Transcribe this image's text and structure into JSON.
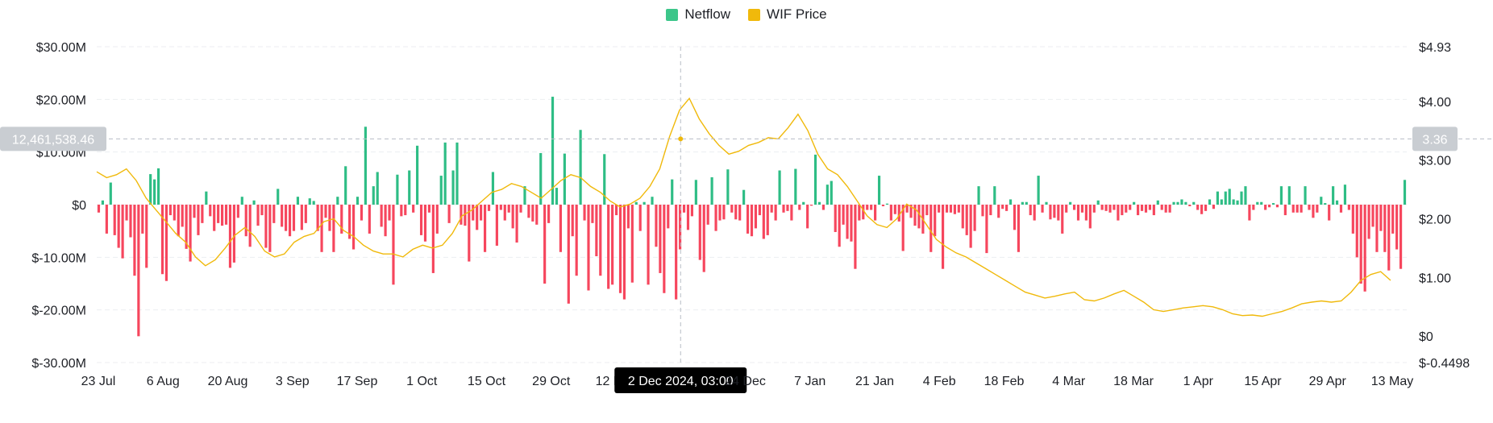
{
  "chart_data": {
    "type": "bar+line",
    "legend": [
      {
        "name": "Netflow",
        "color": "#3cc68a"
      },
      {
        "name": "WIF Price",
        "color": "#f0b90b"
      }
    ],
    "legend_placement": "top-center",
    "x_ticks": [
      "23 Jul",
      "6 Aug",
      "20 Aug",
      "3 Sep",
      "17 Sep",
      "1 Oct",
      "15 Oct",
      "29 Oct",
      "12 Nov",
      "2 Dec 2024, 03:00",
      "24 Dec",
      "7 Jan",
      "21 Jan",
      "4 Feb",
      "18 Feb",
      "4 Mar",
      "18 Mar",
      "1 Apr",
      "15 Apr",
      "29 Apr",
      "13 May"
    ],
    "y_left": {
      "ticks": [
        "$30.00M",
        "$20.00M",
        "$10.00M",
        "$0",
        "$-10.00M",
        "$-20.00M",
        "$-30.00M"
      ],
      "range_millions": [
        -30,
        30
      ]
    },
    "y_right": {
      "ticks": [
        "$4.93",
        "$4.00",
        "$3.00",
        "$2.00",
        "$1.00",
        "$0",
        "$-0.4498"
      ],
      "range": [
        -0.4498,
        4.93
      ]
    },
    "grid": true,
    "crosshair": {
      "date": "2 Dec 2024, 03:00",
      "left_value": "12,461,538.46",
      "right_value": "3.36"
    },
    "series": [
      {
        "name": "Netflow",
        "unit": "$M",
        "values": [
          -1.5,
          0.8,
          -5.5,
          4.2,
          -5.8,
          -8.2,
          -10.2,
          -3.0,
          -6.2,
          -13.5,
          -25.0,
          -5.5,
          -12.0,
          5.8,
          4.8,
          6.9,
          -13.2,
          -14.5,
          -2.0,
          -3.0,
          -6.0,
          -4.2,
          -8.4,
          -10.8,
          -2.5,
          -5.8,
          -3.5,
          2.5,
          -2.2,
          -5.0,
          -3.5,
          -4.0,
          -3.8,
          -12.0,
          -11.0,
          -2.5,
          1.5,
          -6.0,
          -8.0,
          0.8,
          -4.0,
          -2.0,
          -8.2,
          -9.0,
          -3.5,
          3.0,
          -4.2,
          -5.0,
          -6.0,
          -5.0,
          1.5,
          -4.8,
          -3.5,
          1.2,
          0.7,
          -5.0,
          -9.0,
          -2.5,
          -5.0,
          -9.0,
          1.5,
          -5.5,
          7.3,
          -6.5,
          -8.5,
          1.5,
          -3.0,
          14.8,
          -5.5,
          3.5,
          6.2,
          -4.2,
          -6.0,
          -3.0,
          -15.2,
          5.7,
          -2.2,
          -2.0,
          6.5,
          -1.5,
          11.2,
          -5.8,
          -7.0,
          -1.5,
          -13.0,
          -5.5,
          5.5,
          11.8,
          -3.5,
          6.5,
          11.8,
          -3.8,
          -4.0,
          -10.8,
          -3.0,
          -4.8,
          -3.0,
          -9.0,
          -1.2,
          6.2,
          -7.8,
          -1.0,
          -3.0,
          -1.5,
          -4.5,
          -7.2,
          -1.5,
          3.5,
          -2.5,
          -3.2,
          -3.8,
          9.8,
          -15.0,
          -3.5,
          20.5,
          3.2,
          -9.0,
          9.7,
          -18.8,
          -6.0,
          -13.5,
          14.2,
          -3.0,
          -16.3,
          -3.5,
          -9.8,
          -13.5,
          9.6,
          -16.0,
          -15.2,
          -2.0,
          -16.8,
          -18.0,
          -4.5,
          -14.8,
          0.5,
          -5.0,
          0.5,
          -15.2,
          1.5,
          -8.0,
          -13.0,
          -16.8,
          -4.5,
          4.8,
          -18.0,
          -8.5,
          -1.5,
          -4.8,
          -2.2,
          4.7,
          -10.5,
          -12.8,
          -3.8,
          5.2,
          -5.0,
          -3.0,
          -2.8,
          6.7,
          -1.5,
          -2.8,
          -3.0,
          2.8,
          -5.5,
          -6.0,
          -4.5,
          -2.0,
          -6.5,
          -5.8,
          -1.5,
          -3.0,
          6.5,
          -1.5,
          -1.2,
          -3.0,
          6.8,
          -1.0,
          0.5,
          -4.5,
          -0.2,
          9.5,
          0.5,
          -1.0,
          3.8,
          4.5,
          -5.2,
          -8.0,
          -3.8,
          -6.5,
          -7.0,
          -12.2,
          -3.0,
          -2.8,
          -1.0,
          -1.0,
          -3.0,
          5.5,
          -0.3,
          0.2,
          -3.0,
          -1.8,
          -3.2,
          -8.8,
          -1.5,
          -2.5,
          -4.0,
          -4.5,
          -5.5,
          -2.0,
          -9.0,
          -6.0,
          -1.5,
          -12.2,
          -1.5,
          -1.5,
          -1.8,
          -1.5,
          -4.5,
          -5.8,
          -8.2,
          -5.0,
          3.5,
          -2.2,
          -9.2,
          -2.0,
          3.5,
          -2.5,
          -0.8,
          -1.2,
          1.0,
          -4.8,
          -9.0,
          0.5,
          0.5,
          -2.0,
          -3.0,
          5.5,
          -1.5,
          0.5,
          -2.8,
          -2.5,
          -3.0,
          -5.5,
          -1.5,
          0.5,
          -1.0,
          -3.0,
          -1.5,
          -3.0,
          -4.5,
          -1.5,
          0.8,
          -1.0,
          -1.2,
          -1.5,
          -1.0,
          -3.0,
          -2.0,
          -1.5,
          -1.0,
          0.5,
          -2.0,
          -1.2,
          -1.5,
          -1.0,
          -2.0,
          0.8,
          -1.0,
          -1.5,
          -1.5,
          0.5,
          0.5,
          1.0,
          0.5,
          -0.3,
          0.5,
          -1.0,
          -1.8,
          -1.2,
          1.0,
          -0.8,
          2.5,
          1.0,
          2.5,
          3.0,
          1.0,
          0.8,
          2.5,
          3.5,
          -3.0,
          -1.0,
          0.5,
          0.5,
          -1.0,
          -0.5,
          0.3,
          -0.5,
          3.5,
          -2.0,
          3.5,
          -1.5,
          -1.5,
          -1.5,
          3.5,
          -1.0,
          -2.5,
          -1.5,
          1.5,
          0.3,
          -3.0,
          3.5,
          0.8,
          -1.5,
          3.8,
          -1.0,
          -5.5,
          -10.0,
          -15.0,
          -16.5,
          -6.5,
          -4.2,
          -9.0,
          -5.0,
          -9.0,
          -12.5,
          -5.5,
          -8.5,
          -12.2,
          4.7
        ]
      },
      {
        "name": "WIF Price",
        "unit": "$",
        "points": [
          [
            0,
            2.8
          ],
          [
            1,
            2.7
          ],
          [
            2,
            2.75
          ],
          [
            3,
            2.85
          ],
          [
            4,
            2.65
          ],
          [
            5,
            2.35
          ],
          [
            6,
            2.15
          ],
          [
            7,
            1.95
          ],
          [
            8,
            1.75
          ],
          [
            9,
            1.6
          ],
          [
            10,
            1.35
          ],
          [
            11,
            1.2
          ],
          [
            12,
            1.3
          ],
          [
            13,
            1.5
          ],
          [
            14,
            1.72
          ],
          [
            15,
            1.85
          ],
          [
            16,
            1.7
          ],
          [
            17,
            1.45
          ],
          [
            18,
            1.35
          ],
          [
            19,
            1.4
          ],
          [
            20,
            1.6
          ],
          [
            21,
            1.7
          ],
          [
            22,
            1.75
          ],
          [
            23,
            1.95
          ],
          [
            24,
            2.0
          ],
          [
            25,
            1.8
          ],
          [
            26,
            1.7
          ],
          [
            27,
            1.55
          ],
          [
            28,
            1.45
          ],
          [
            29,
            1.4
          ],
          [
            30,
            1.4
          ],
          [
            31,
            1.35
          ],
          [
            32,
            1.48
          ],
          [
            33,
            1.55
          ],
          [
            34,
            1.5
          ],
          [
            35,
            1.55
          ],
          [
            36,
            1.75
          ],
          [
            37,
            2.05
          ],
          [
            38,
            2.15
          ],
          [
            39,
            2.3
          ],
          [
            40,
            2.45
          ],
          [
            41,
            2.5
          ],
          [
            42,
            2.6
          ],
          [
            43,
            2.55
          ],
          [
            44,
            2.45
          ],
          [
            45,
            2.35
          ],
          [
            46,
            2.5
          ],
          [
            47,
            2.65
          ],
          [
            48,
            2.75
          ],
          [
            49,
            2.7
          ],
          [
            50,
            2.55
          ],
          [
            51,
            2.45
          ],
          [
            52,
            2.3
          ],
          [
            53,
            2.2
          ],
          [
            54,
            2.25
          ],
          [
            55,
            2.35
          ],
          [
            56,
            2.55
          ],
          [
            57,
            2.85
          ],
          [
            58,
            3.4
          ],
          [
            59,
            3.85
          ],
          [
            60,
            4.05
          ],
          [
            61,
            3.7
          ],
          [
            62,
            3.45
          ],
          [
            63,
            3.25
          ],
          [
            64,
            3.1
          ],
          [
            65,
            3.15
          ],
          [
            66,
            3.25
          ],
          [
            67,
            3.3
          ],
          [
            68,
            3.38
          ],
          [
            69,
            3.36
          ],
          [
            70,
            3.55
          ],
          [
            71,
            3.78
          ],
          [
            72,
            3.5
          ],
          [
            73,
            3.1
          ],
          [
            74,
            2.85
          ],
          [
            75,
            2.75
          ],
          [
            76,
            2.55
          ],
          [
            77,
            2.3
          ],
          [
            78,
            2.05
          ],
          [
            79,
            1.9
          ],
          [
            80,
            1.85
          ],
          [
            81,
            2.0
          ],
          [
            82,
            2.25
          ],
          [
            83,
            2.15
          ],
          [
            84,
            1.9
          ],
          [
            85,
            1.65
          ],
          [
            86,
            1.52
          ],
          [
            87,
            1.42
          ],
          [
            88,
            1.35
          ],
          [
            89,
            1.25
          ],
          [
            90,
            1.15
          ],
          [
            91,
            1.05
          ],
          [
            92,
            0.95
          ],
          [
            93,
            0.85
          ],
          [
            94,
            0.75
          ],
          [
            95,
            0.7
          ],
          [
            96,
            0.65
          ],
          [
            97,
            0.68
          ],
          [
            98,
            0.72
          ],
          [
            99,
            0.75
          ],
          [
            100,
            0.62
          ],
          [
            101,
            0.6
          ],
          [
            102,
            0.65
          ],
          [
            103,
            0.72
          ],
          [
            104,
            0.78
          ],
          [
            105,
            0.68
          ],
          [
            106,
            0.58
          ],
          [
            107,
            0.45
          ],
          [
            108,
            0.42
          ],
          [
            109,
            0.45
          ],
          [
            110,
            0.48
          ],
          [
            111,
            0.5
          ],
          [
            112,
            0.52
          ],
          [
            113,
            0.5
          ],
          [
            114,
            0.45
          ],
          [
            115,
            0.38
          ],
          [
            116,
            0.35
          ],
          [
            117,
            0.36
          ],
          [
            118,
            0.34
          ],
          [
            119,
            0.38
          ],
          [
            120,
            0.42
          ],
          [
            121,
            0.48
          ],
          [
            122,
            0.55
          ],
          [
            123,
            0.58
          ],
          [
            124,
            0.6
          ],
          [
            125,
            0.58
          ],
          [
            126,
            0.6
          ],
          [
            127,
            0.75
          ],
          [
            128,
            0.95
          ],
          [
            129,
            1.05
          ],
          [
            130,
            1.1
          ],
          [
            131,
            0.95
          ]
        ]
      }
    ]
  }
}
